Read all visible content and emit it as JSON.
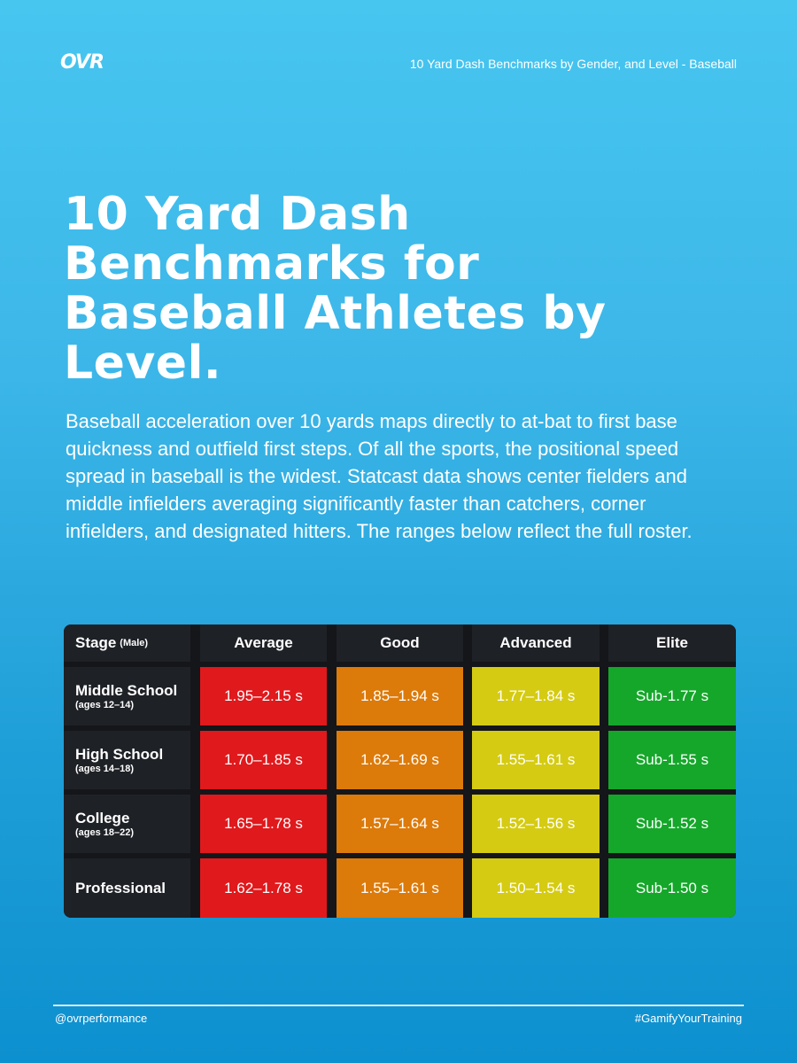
{
  "brand": {
    "logo_text": "OVR"
  },
  "top_caption": "10 Yard Dash Benchmarks by Gender, and Level - Baseball",
  "headline": "10 Yard Dash Benchmarks for Baseball Athletes by Level.",
  "intro": "Baseball acceleration over 10 yards maps directly to at-bat to first base quickness and outfield first steps. Of all the sports, the positional speed spread in baseball is the widest. Statcast data shows center fielders and middle infielders averaging significantly faster than catchers, corner infielders, and designated hitters. The ranges below reflect the full roster.",
  "table": {
    "header": {
      "stage": "Stage",
      "stage_note": "(Male)",
      "average": "Average",
      "good": "Good",
      "advanced": "Advanced",
      "elite": "Elite"
    },
    "rows": [
      {
        "stage": "Middle School",
        "ages": "(ages 12–14)",
        "average": "1.95–2.15 s",
        "good": "1.85–1.94 s",
        "advanced": "1.77–1.84 s",
        "elite": "Sub-1.77 s"
      },
      {
        "stage": "High School",
        "ages": "(ages 14–18)",
        "average": "1.70–1.85 s",
        "good": "1.62–1.69 s",
        "advanced": "1.55–1.61 s",
        "elite": "Sub-1.55 s"
      },
      {
        "stage": "College",
        "ages": "(ages 18–22)",
        "average": "1.65–1.78 s",
        "good": "1.57–1.64 s",
        "advanced": "1.52–1.56 s",
        "elite": "Sub-1.52 s"
      },
      {
        "stage": "Professional",
        "ages": "",
        "average": "1.62–1.78 s",
        "good": "1.55–1.61 s",
        "advanced": "1.50–1.54 s",
        "elite": "Sub-1.50 s"
      }
    ],
    "colors": {
      "average": "#e0191c",
      "good": "#dc7a0a",
      "advanced": "#d5cb12",
      "elite": "#15a72a"
    }
  },
  "footer": {
    "handle": "@ovrperformance",
    "hashtag": "#GamifyYourTraining"
  }
}
